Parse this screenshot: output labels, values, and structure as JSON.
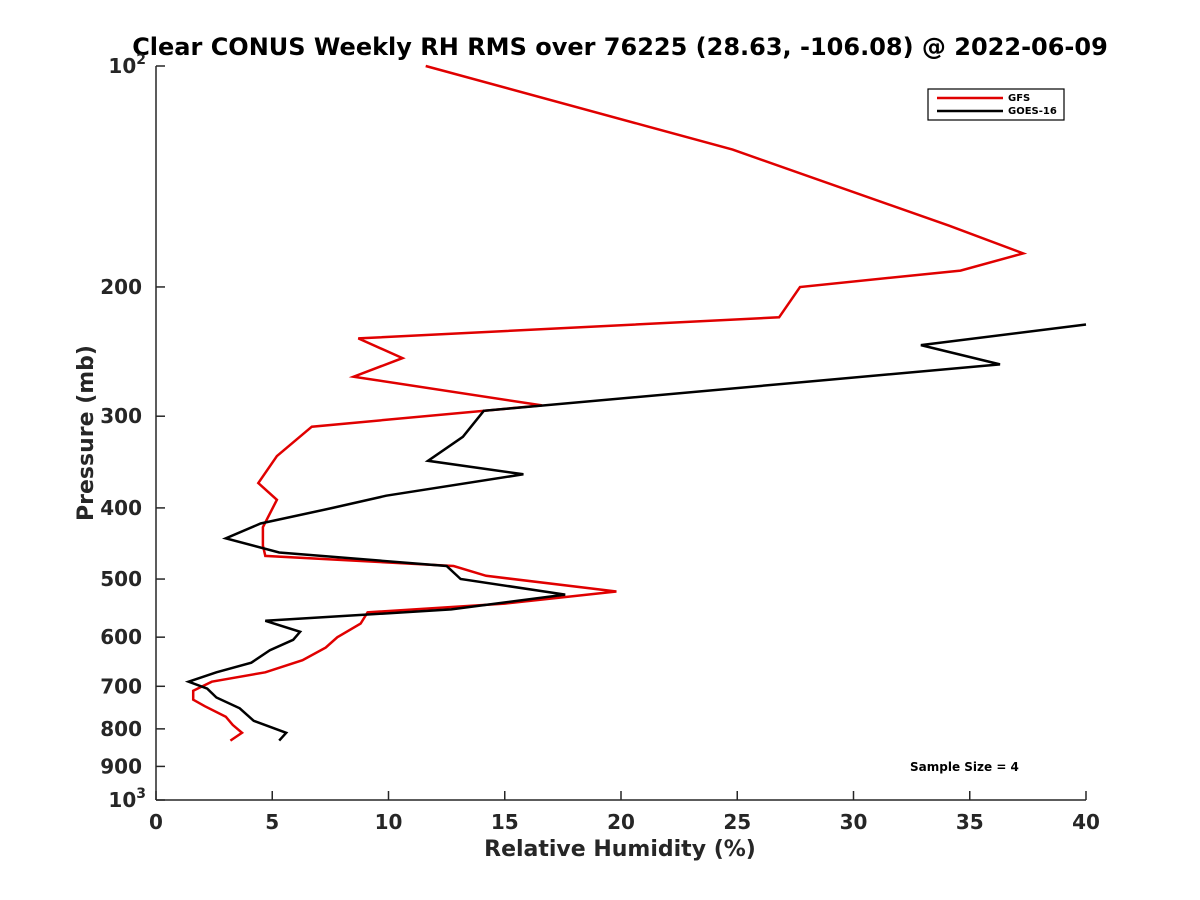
{
  "chart_data": {
    "type": "line",
    "title": "Clear CONUS Weekly RH RMS over 76225 (28.63, -106.08) @ 2022-06-09",
    "xlabel": "Relative Humidity (%)",
    "ylabel": "Pressure (mb)",
    "xlim": [
      0,
      40
    ],
    "ylim": [
      100,
      1000
    ],
    "y_scale": "log",
    "y_reversed": true,
    "grid": false,
    "legend_position": "top-right",
    "x_ticks": [
      0,
      5,
      10,
      15,
      20,
      25,
      30,
      35,
      40
    ],
    "x_tick_labels": [
      "0",
      "5",
      "10",
      "15",
      "20",
      "25",
      "30",
      "35",
      "40"
    ],
    "y_ticks": [
      {
        "value": 100,
        "base": "10",
        "exp": "2"
      },
      {
        "value": 200,
        "label": "200"
      },
      {
        "value": 300,
        "label": "300"
      },
      {
        "value": 400,
        "label": "400"
      },
      {
        "value": 500,
        "label": "500"
      },
      {
        "value": 600,
        "label": "600"
      },
      {
        "value": 700,
        "label": "700"
      },
      {
        "value": 800,
        "label": "800"
      },
      {
        "value": 900,
        "label": "900"
      },
      {
        "value": 1000,
        "base": "10",
        "exp": "3"
      }
    ],
    "annotation": "Sample Size = 4",
    "series": [
      {
        "name": "GFS",
        "color": "#e00000",
        "x": [
          11.6,
          24.8,
          34.1,
          37.3,
          34.6,
          27.7,
          26.8,
          8.7,
          10.6,
          8.5,
          16.6,
          6.7,
          5.2,
          4.4,
          5.2,
          4.6,
          4.6,
          4.7,
          12.8,
          14.2,
          19.8,
          15.0,
          9.1,
          8.8,
          7.8,
          7.3,
          6.3,
          4.7,
          2.4,
          1.6,
          1.6,
          2.1,
          3.0,
          3.3,
          3.7,
          3.2
        ],
        "y": [
          100,
          130,
          165,
          180,
          190,
          200,
          220,
          235,
          250,
          265,
          290,
          310,
          340,
          370,
          390,
          425,
          450,
          465,
          480,
          495,
          520,
          540,
          555,
          575,
          600,
          620,
          645,
          670,
          690,
          710,
          730,
          745,
          770,
          790,
          810,
          830
        ]
      },
      {
        "name": "GOES-16",
        "color": "#000000",
        "x": [
          40.0,
          32.9,
          36.3,
          14.1,
          13.2,
          11.7,
          15.8,
          9.9,
          7.6,
          4.5,
          3.0,
          5.3,
          12.5,
          13.1,
          17.6,
          12.7,
          4.7,
          6.2,
          5.9,
          4.9,
          4.1,
          2.6,
          1.4,
          2.2,
          2.6,
          3.6,
          4.2,
          5.6,
          5.3
        ],
        "y": [
          225,
          240,
          255,
          295,
          320,
          345,
          360,
          385,
          400,
          420,
          440,
          460,
          480,
          500,
          525,
          550,
          570,
          590,
          605,
          625,
          650,
          670,
          690,
          705,
          725,
          750,
          780,
          810,
          830
        ]
      }
    ]
  }
}
